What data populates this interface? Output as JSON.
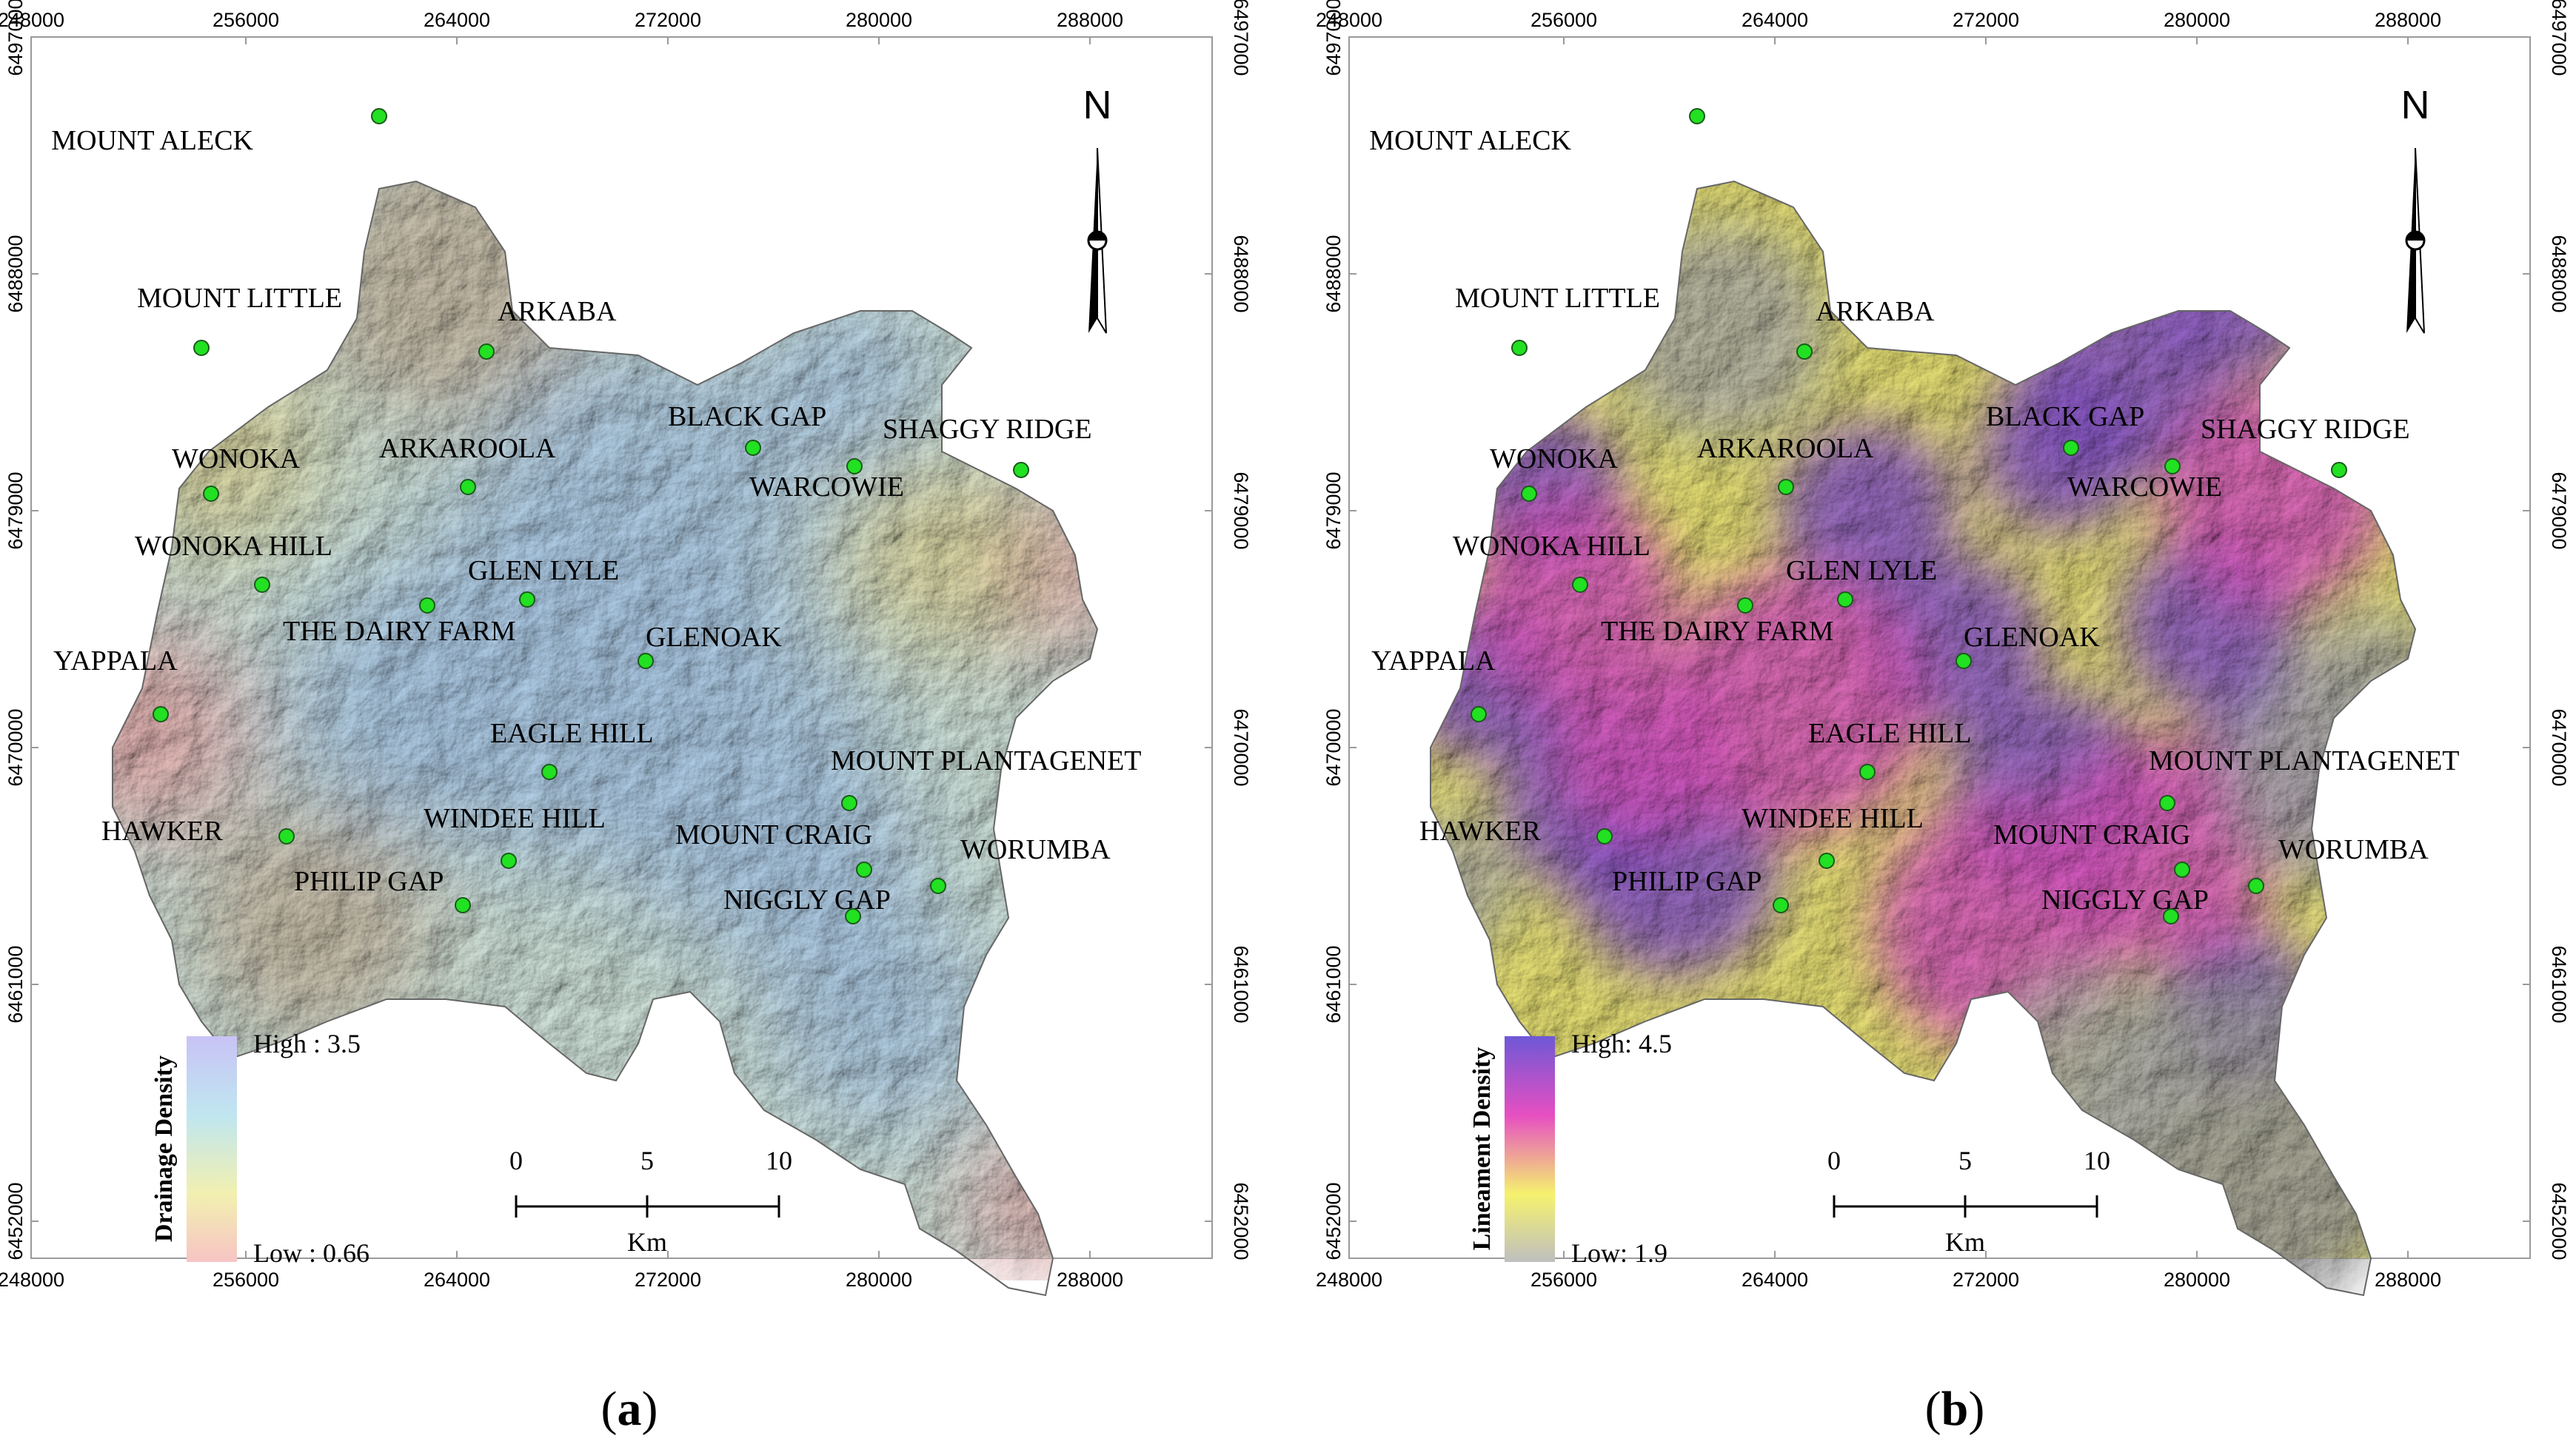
{
  "grid": {
    "x_ticks": [
      "248000",
      "256000",
      "264000",
      "272000",
      "280000",
      "288000"
    ],
    "y_ticks": [
      "6497000",
      "6488000",
      "6479000",
      "6470000",
      "6461000",
      "6452000"
    ]
  },
  "panels": [
    {
      "id": "a",
      "caption_letter": "a",
      "legend": {
        "title": "Drainage Density",
        "high": "High : 3.5",
        "low": "Low : 0.66",
        "colors": [
          "#c8c3f5",
          "#bfe6f0",
          "#f2f0b0",
          "#f7c4c4"
        ]
      },
      "map_colors": {
        "base": "#d8ece3",
        "center": "#b3d1ef",
        "edge": "#e6dfa2",
        "south": "#cfc0a9",
        "warm": "#f0b3b3"
      }
    },
    {
      "id": "b",
      "caption_letter": "b",
      "legend": {
        "title": "Lineament Density",
        "high": "High: 4.5",
        "low": "Low: 1.9",
        "colors": [
          "#6e58d6",
          "#e64fc2",
          "#f5f26e",
          "#bfbfbf"
        ]
      },
      "map_colors": {
        "base": "#f2ec7a",
        "center": "#8e5ad2",
        "edge": "#b8b8b0",
        "south": "#a5a5a5",
        "warm": "#e05ac8"
      }
    }
  ],
  "places": [
    {
      "name": "MOUNT ALECK"
    },
    {
      "name": "MOUNT LITTLE"
    },
    {
      "name": "ARKABA"
    },
    {
      "name": "WONOKA"
    },
    {
      "name": "ARKAROOLA"
    },
    {
      "name": "BLACK GAP"
    },
    {
      "name": "WARCOWIE"
    },
    {
      "name": "SHAGGY RIDGE"
    },
    {
      "name": "WONOKA HILL"
    },
    {
      "name": "GLEN LYLE"
    },
    {
      "name": "THE DAIRY FARM"
    },
    {
      "name": "GLENOAK"
    },
    {
      "name": "YAPPALA"
    },
    {
      "name": "EAGLE HILL"
    },
    {
      "name": "MOUNT PLANTAGENET"
    },
    {
      "name": "HAWKER"
    },
    {
      "name": "WINDEE HILL"
    },
    {
      "name": "MOUNT CRAIG"
    },
    {
      "name": "WORUMBA"
    },
    {
      "name": "PHILIP GAP"
    },
    {
      "name": "NIGGLY GAP"
    }
  ],
  "place_color": "#22e022",
  "scale_bar": {
    "labels": [
      "0",
      "5",
      "10"
    ],
    "unit": "Km"
  },
  "north_label": "N"
}
